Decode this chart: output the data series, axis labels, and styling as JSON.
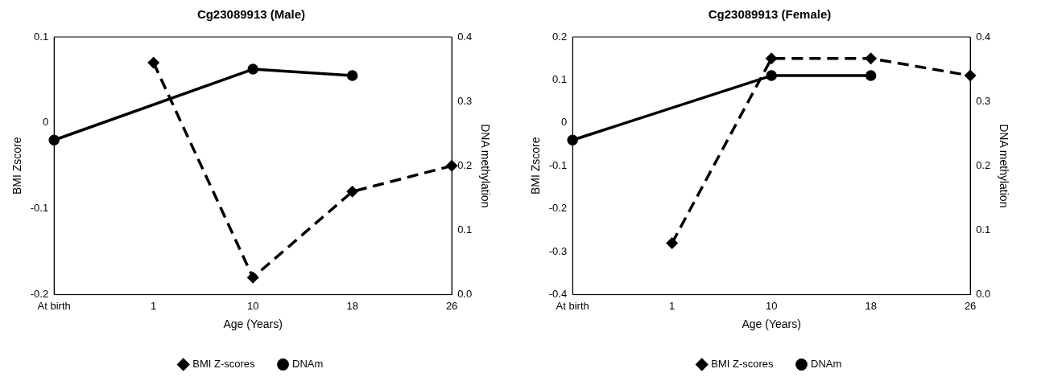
{
  "chart_data": [
    {
      "type": "line",
      "title": "Cg23089913 (Male)",
      "xlabel": "Age (Years)",
      "ylabel": "BMI Zscore",
      "y2label": "DNA methylation",
      "categories": [
        "At birth",
        "1",
        "10",
        "18",
        "26"
      ],
      "series": [
        {
          "name": "BMI Z-scores",
          "color": "#000000",
          "values": [
            null,
            0.07,
            -0.18,
            -0.08,
            -0.05
          ],
          "marker": "diamond",
          "line_style": "dashed"
        },
        {
          "name": "DNAm",
          "color": "#000000",
          "values": [
            0.24,
            null,
            0.35,
            0.34,
            null
          ],
          "axis": "y2",
          "marker": "circle",
          "line_style": "solid"
        }
      ],
      "ylim": [
        -0.2,
        0.1
      ],
      "yticks": [
        -0.2,
        -0.1,
        0,
        0.1
      ],
      "y2lim": [
        0.0,
        0.4
      ],
      "y2ticks": [
        {
          "value": 0,
          "label": "0.0"
        },
        0.1,
        0.2,
        0.3,
        0.4
      ],
      "grid": false,
      "legend": "bottom"
    },
    {
      "type": "line",
      "title": "Cg23089913 (Female)",
      "xlabel": "Age (Years)",
      "ylabel": "BMI Zscore",
      "y2label": "DNA methylation",
      "categories": [
        "At birth",
        "1",
        "10",
        "18",
        "26"
      ],
      "series": [
        {
          "name": "BMI Z-scores",
          "color": "#000000",
          "values": [
            null,
            -0.28,
            0.15,
            0.15,
            0.11
          ],
          "marker": "diamond",
          "line_style": "dashed"
        },
        {
          "name": "DNAm",
          "color": "#000000",
          "values": [
            0.24,
            null,
            0.34,
            0.34,
            null
          ],
          "axis": "y2",
          "marker": "circle",
          "line_style": "solid"
        }
      ],
      "ylim": [
        -0.4,
        0.2
      ],
      "yticks": [
        -0.4,
        -0.3,
        -0.2,
        -0.1,
        0,
        0.1,
        0.2
      ],
      "y2lim": [
        0.0,
        0.4
      ],
      "y2ticks": [
        {
          "value": 0,
          "label": "0.0"
        },
        0.1,
        0.2,
        0.3,
        0.4
      ],
      "grid": false,
      "legend": "bottom"
    }
  ]
}
